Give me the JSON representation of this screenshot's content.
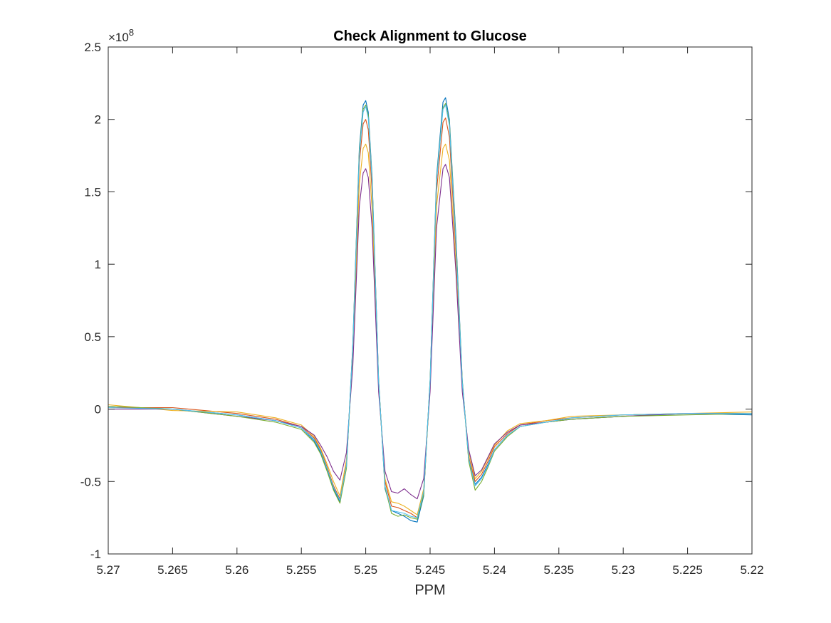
{
  "chart_data": {
    "type": "line",
    "title": "Check Alignment to Glucose",
    "xlabel": "PPM",
    "ylabel": "",
    "x_reversed": true,
    "xlim": [
      5.22,
      5.27
    ],
    "ylim": [
      -100000000.0,
      250000000.0
    ],
    "y_exponent_label": "×10",
    "y_exponent_power": "8",
    "xticks": [
      5.27,
      5.265,
      5.26,
      5.255,
      5.25,
      5.245,
      5.24,
      5.235,
      5.23,
      5.225,
      5.22
    ],
    "xtick_labels": [
      "5.27",
      "5.265",
      "5.26",
      "5.255",
      "5.25",
      "5.245",
      "5.24",
      "5.235",
      "5.23",
      "5.225",
      "5.22"
    ],
    "yticks": [
      -100000000.0,
      -50000000.0,
      0,
      50000000.0,
      100000000.0,
      150000000.0,
      200000000.0,
      250000000.0
    ],
    "ytick_labels": [
      "-1",
      "-0.5",
      "0",
      "0.5",
      "1",
      "1.5",
      "2",
      "2.5"
    ],
    "grid": false,
    "x": [
      5.27,
      5.265,
      5.26,
      5.257,
      5.255,
      5.254,
      5.2535,
      5.253,
      5.2525,
      5.252,
      5.2515,
      5.251,
      5.2505,
      5.2502,
      5.25,
      5.2498,
      5.2495,
      5.249,
      5.2485,
      5.248,
      5.2475,
      5.247,
      5.2465,
      5.246,
      5.2455,
      5.245,
      5.2445,
      5.244,
      5.2438,
      5.2435,
      5.243,
      5.2425,
      5.242,
      5.2415,
      5.241,
      5.2405,
      5.24,
      5.239,
      5.238,
      5.236,
      5.234,
      5.23,
      5.225,
      5.22
    ],
    "series": [
      {
        "color": "#0072bd",
        "values": [
          2000000.0,
          0,
          -4000000.0,
          -8000000.0,
          -13000000.0,
          -22000000.0,
          -30000000.0,
          -42000000.0,
          -55000000.0,
          -64000000.0,
          -40000000.0,
          45000000.0,
          180000000.0,
          210000000.0,
          213000000.0,
          205000000.0,
          160000000.0,
          20000000.0,
          -55000000.0,
          -70000000.0,
          -72000000.0,
          -74000000.0,
          -77000000.0,
          -78000000.0,
          -60000000.0,
          20000000.0,
          160000000.0,
          212000000.0,
          215000000.0,
          200000000.0,
          120000000.0,
          20000000.0,
          -35000000.0,
          -52000000.0,
          -47000000.0,
          -38000000.0,
          -28000000.0,
          -18000000.0,
          -12000000.0,
          -9000000.0,
          -7000000.0,
          -5000000.0,
          -3000000.0,
          -4000000.0
        ]
      },
      {
        "color": "#d95319",
        "values": [
          1000000.0,
          1000000.0,
          -3000000.0,
          -7000000.0,
          -12000000.0,
          -20000000.0,
          -28000000.0,
          -40000000.0,
          -53000000.0,
          -62000000.0,
          -38000000.0,
          40000000.0,
          170000000.0,
          197000000.0,
          200000000.0,
          193000000.0,
          150000000.0,
          18000000.0,
          -50000000.0,
          -67000000.0,
          -68000000.0,
          -70000000.0,
          -72000000.0,
          -75000000.0,
          -58000000.0,
          18000000.0,
          150000000.0,
          198000000.0,
          201000000.0,
          188000000.0,
          110000000.0,
          18000000.0,
          -33000000.0,
          -50000000.0,
          -45000000.0,
          -36000000.0,
          -26000000.0,
          -17000000.0,
          -11000000.0,
          -8000000.0,
          -6000000.0,
          -4000000.0,
          -3000000.0,
          -3000000.0
        ]
      },
      {
        "color": "#edb120",
        "values": [
          3000000.0,
          -1000000.0,
          -2000000.0,
          -6000000.0,
          -11000000.0,
          -19000000.0,
          -27000000.0,
          -38000000.0,
          -50000000.0,
          -60000000.0,
          -35000000.0,
          35000000.0,
          155000000.0,
          180000000.0,
          183000000.0,
          177000000.0,
          138000000.0,
          15000000.0,
          -48000000.0,
          -64000000.0,
          -65000000.0,
          -67000000.0,
          -70000000.0,
          -73000000.0,
          -55000000.0,
          15000000.0,
          140000000.0,
          180000000.0,
          183000000.0,
          172000000.0,
          100000000.0,
          15000000.0,
          -30000000.0,
          -48000000.0,
          -43000000.0,
          -34000000.0,
          -25000000.0,
          -15000000.0,
          -10000000.0,
          -8000000.0,
          -5000000.0,
          -4000000.0,
          -3000000.0,
          -2000000.0
        ]
      },
      {
        "color": "#7e2f8e",
        "values": [
          0,
          0,
          -5000000.0,
          -8000000.0,
          -12000000.0,
          -18000000.0,
          -25000000.0,
          -33000000.0,
          -43000000.0,
          -49000000.0,
          -30000000.0,
          30000000.0,
          140000000.0,
          163000000.0,
          166000000.0,
          160000000.0,
          125000000.0,
          12000000.0,
          -43000000.0,
          -57000000.0,
          -58000000.0,
          -55000000.0,
          -59000000.0,
          -62000000.0,
          -48000000.0,
          12000000.0,
          125000000.0,
          166000000.0,
          169000000.0,
          160000000.0,
          95000000.0,
          12000000.0,
          -28000000.0,
          -46000000.0,
          -42000000.0,
          -33000000.0,
          -24000000.0,
          -16000000.0,
          -11000000.0,
          -9000000.0,
          -7000000.0,
          -5000000.0,
          -3000000.0,
          -3000000.0
        ]
      },
      {
        "color": "#77ac30",
        "values": [
          2000000.0,
          0,
          -5000000.0,
          -9000000.0,
          -14000000.0,
          -23000000.0,
          -31000000.0,
          -43000000.0,
          -56000000.0,
          -65000000.0,
          -41000000.0,
          44000000.0,
          178000000.0,
          207000000.0,
          210000000.0,
          203000000.0,
          158000000.0,
          20000000.0,
          -54000000.0,
          -72000000.0,
          -74000000.0,
          -73000000.0,
          -75000000.0,
          -76000000.0,
          -59000000.0,
          20000000.0,
          158000000.0,
          208000000.0,
          211000000.0,
          198000000.0,
          118000000.0,
          19000000.0,
          -36000000.0,
          -56000000.0,
          -50000000.0,
          -40000000.0,
          -29000000.0,
          -19000000.0,
          -12000000.0,
          -9000000.0,
          -7000000.0,
          -5000000.0,
          -4000000.0,
          -3000000.0
        ]
      },
      {
        "color": "#4dbeee",
        "values": [
          1000000.0,
          0,
          -4000000.0,
          -8000000.0,
          -13000000.0,
          -21000000.0,
          -29000000.0,
          -41000000.0,
          -54000000.0,
          -63000000.0,
          -39000000.0,
          43000000.0,
          176000000.0,
          205000000.0,
          209000000.0,
          201000000.0,
          157000000.0,
          19000000.0,
          -53000000.0,
          -70000000.0,
          -71000000.0,
          -72000000.0,
          -74000000.0,
          -75000000.0,
          -57000000.0,
          19000000.0,
          157000000.0,
          207000000.0,
          210000000.0,
          196000000.0,
          115000000.0,
          18000000.0,
          -34000000.0,
          -53000000.0,
          -48000000.0,
          -39000000.0,
          -28000000.0,
          -18000000.0,
          -12000000.0,
          -9000000.0,
          -6000000.0,
          -4000000.0,
          -3000000.0,
          -3000000.0
        ]
      }
    ]
  }
}
